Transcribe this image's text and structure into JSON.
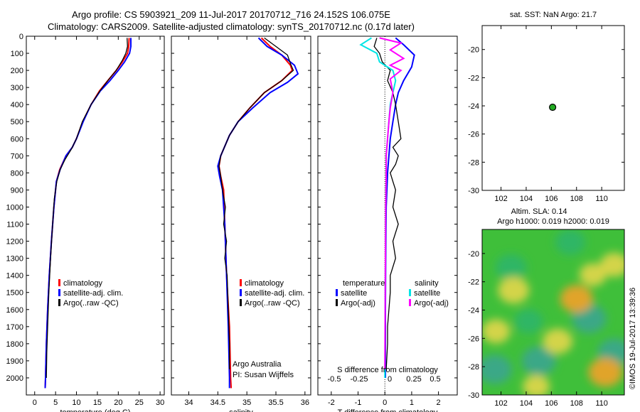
{
  "header": {
    "line1": "Argo profile: CS 5903921_209 11-Jul-2017 20170712_716 24.152S 106.075E",
    "line2": "Climatology: CARS2009. Satellite-adjusted climatology: synTS_20170712.nc (0.17d later)"
  },
  "credit": "Argo Australia",
  "pi": "PI: Susan Wijffels",
  "stamp": "©IMOS 19-Jul-2017 13:39:36",
  "colors": {
    "climatology": "#ff0000",
    "satellite": "#0000ff",
    "argo": "#000000",
    "sat_s": "#00e5e5",
    "argo_s": "#ff00ff"
  },
  "chart_data": [
    {
      "id": "temperature",
      "type": "line",
      "xlabel": "temperature (deg C)",
      "xlim": [
        -2,
        31
      ],
      "ylim": [
        2100,
        0
      ],
      "xticks": [
        0,
        5,
        10,
        15,
        20,
        25,
        30
      ],
      "yticks": [
        0,
        100,
        200,
        300,
        400,
        500,
        600,
        700,
        800,
        900,
        1000,
        1100,
        1200,
        1300,
        1400,
        1500,
        1600,
        1700,
        1800,
        1900,
        2000
      ],
      "legend": [
        "climatology",
        "satellite-adj. clim.",
        "Argo(..raw -QC)"
      ],
      "series": [
        {
          "name": "climatology",
          "color": "#ff0000",
          "points": [
            [
              22.6,
              10
            ],
            [
              22.5,
              60
            ],
            [
              22.2,
              100
            ],
            [
              21,
              150
            ],
            [
              19.5,
              200
            ],
            [
              17.5,
              260
            ],
            [
              15.5,
              320
            ],
            [
              13.5,
              400
            ],
            [
              11.5,
              500
            ],
            [
              10,
              600
            ],
            [
              9,
              650
            ],
            [
              7.5,
              700
            ],
            [
              6,
              780
            ],
            [
              5.2,
              850
            ],
            [
              4.6,
              1000
            ],
            [
              4,
              1200
            ],
            [
              3.5,
              1400
            ],
            [
              3.1,
              1600
            ],
            [
              2.8,
              1800
            ],
            [
              2.6,
              2000
            ],
            [
              2.5,
              2060
            ]
          ]
        },
        {
          "name": "satellite-adj. clim.",
          "color": "#0000ff",
          "points": [
            [
              23,
              10
            ],
            [
              23,
              60
            ],
            [
              22.7,
              100
            ],
            [
              21.5,
              150
            ],
            [
              20,
              200
            ],
            [
              18,
              260
            ],
            [
              15.7,
              320
            ],
            [
              13.5,
              400
            ],
            [
              11.6,
              500
            ],
            [
              10,
              600
            ],
            [
              9,
              650
            ],
            [
              7.5,
              700
            ],
            [
              6.1,
              780
            ],
            [
              5.2,
              850
            ],
            [
              4.6,
              1000
            ],
            [
              4,
              1200
            ],
            [
              3.5,
              1400
            ],
            [
              3.1,
              1600
            ],
            [
              2.8,
              1800
            ],
            [
              2.6,
              2000
            ],
            [
              2.5,
              2060
            ]
          ]
        },
        {
          "name": "Argo(..raw -QC)",
          "color": "#000000",
          "points": [
            [
              22.1,
              10
            ],
            [
              22.2,
              60
            ],
            [
              21.8,
              100
            ],
            [
              21,
              140
            ],
            [
              19.5,
              200
            ],
            [
              17.5,
              260
            ],
            [
              15.6,
              320
            ],
            [
              13.5,
              400
            ],
            [
              11.4,
              500
            ],
            [
              10,
              600
            ],
            [
              8.8,
              660
            ],
            [
              7.3,
              720
            ],
            [
              6.1,
              780
            ],
            [
              5.3,
              850
            ],
            [
              4.7,
              950
            ],
            [
              4.3,
              1100
            ],
            [
              3.8,
              1300
            ],
            [
              3.4,
              1500
            ],
            [
              3.1,
              1700
            ],
            [
              2.9,
              1850
            ],
            [
              2.8,
              2000
            ]
          ]
        }
      ]
    },
    {
      "id": "salinity",
      "type": "line",
      "xlabel": "salinity",
      "xlim": [
        33.7,
        36.1
      ],
      "ylim": [
        2100,
        0
      ],
      "xticks": [
        34,
        34.5,
        35,
        35.5,
        36
      ],
      "legend": [
        "climatology",
        "satellite-adj. clim.",
        "Argo(..raw -QC)"
      ],
      "series": [
        {
          "name": "climatology",
          "color": "#ff0000",
          "points": [
            [
              35.25,
              10
            ],
            [
              35.4,
              60
            ],
            [
              35.6,
              110
            ],
            [
              35.75,
              170
            ],
            [
              35.78,
              200
            ],
            [
              35.6,
              260
            ],
            [
              35.3,
              330
            ],
            [
              35.05,
              420
            ],
            [
              34.85,
              500
            ],
            [
              34.7,
              580
            ],
            [
              34.55,
              700
            ],
            [
              34.52,
              760
            ],
            [
              34.55,
              820
            ],
            [
              34.6,
              900
            ],
            [
              34.62,
              1100
            ],
            [
              34.65,
              1400
            ],
            [
              34.7,
              1700
            ],
            [
              34.72,
              2000
            ],
            [
              34.73,
              2060
            ]
          ]
        },
        {
          "name": "satellite-adj. clim.",
          "color": "#0000ff",
          "points": [
            [
              35.2,
              10
            ],
            [
              35.35,
              60
            ],
            [
              35.6,
              110
            ],
            [
              35.82,
              170
            ],
            [
              35.88,
              220
            ],
            [
              35.7,
              270
            ],
            [
              35.4,
              330
            ],
            [
              35.1,
              420
            ],
            [
              34.85,
              500
            ],
            [
              34.7,
              580
            ],
            [
              34.55,
              700
            ],
            [
              34.5,
              760
            ],
            [
              34.53,
              820
            ],
            [
              34.58,
              900
            ],
            [
              34.62,
              1100
            ],
            [
              34.65,
              1400
            ],
            [
              34.68,
              1700
            ],
            [
              34.7,
              2000
            ],
            [
              34.7,
              2060
            ]
          ]
        },
        {
          "name": "Argo(..raw -QC)",
          "color": "#000000",
          "points": [
            [
              35.3,
              10
            ],
            [
              35.5,
              60
            ],
            [
              35.7,
              110
            ],
            [
              35.75,
              160
            ],
            [
              35.8,
              200
            ],
            [
              35.6,
              260
            ],
            [
              35.3,
              330
            ],
            [
              35.05,
              420
            ],
            [
              34.85,
              500
            ],
            [
              34.7,
              580
            ],
            [
              34.55,
              700
            ],
            [
              34.52,
              760
            ],
            [
              34.55,
              820
            ],
            [
              34.58,
              900
            ],
            [
              34.63,
              1000
            ],
            [
              34.6,
              1100
            ],
            [
              34.65,
              1200
            ],
            [
              34.62,
              1300
            ],
            [
              34.66,
              1400
            ],
            [
              34.68,
              1600
            ],
            [
              34.7,
              1800
            ],
            [
              34.7,
              1950
            ]
          ]
        }
      ]
    },
    {
      "id": "difference",
      "type": "line",
      "xlabel": "T difference from climatology",
      "x2label": "S difference from climatology",
      "xlim": [
        -2.5,
        2.7
      ],
      "ylim": [
        2100,
        0
      ],
      "xticks": [
        -2,
        -1,
        0,
        1,
        2
      ],
      "x2ticks": [
        "-0.5",
        "-0.25",
        "0",
        "0.25",
        "0.5"
      ],
      "legend_left_title": "temperature",
      "legend_right_title": "salinity",
      "legend_left": [
        "satellite",
        "Argo(-adj)"
      ],
      "legend_right": [
        "satellite",
        "Argo(-adj)"
      ],
      "series": [
        {
          "name": "T satellite",
          "color": "#0000ff",
          "points": [
            [
              0.4,
              10
            ],
            [
              0.7,
              50
            ],
            [
              1.1,
              110
            ],
            [
              1,
              180
            ],
            [
              0.7,
              260
            ],
            [
              0.5,
              330
            ],
            [
              0.4,
              400
            ],
            [
              0.3,
              500
            ],
            [
              0.2,
              600
            ],
            [
              0.15,
              700
            ],
            [
              0.1,
              800
            ],
            [
              0.05,
              1000
            ],
            [
              0.03,
              1300
            ],
            [
              0.02,
              1600
            ],
            [
              0.02,
              2000
            ]
          ]
        },
        {
          "name": "T Argo(-adj)",
          "color": "#000000",
          "points": [
            [
              -0.3,
              10
            ],
            [
              -0.4,
              60
            ],
            [
              -0.2,
              100
            ],
            [
              -0.1,
              150
            ],
            [
              0.2,
              200
            ],
            [
              0.1,
              260
            ],
            [
              0.3,
              330
            ],
            [
              0.4,
              400
            ],
            [
              0.5,
              500
            ],
            [
              0.6,
              600
            ],
            [
              0.3,
              650
            ],
            [
              0.5,
              700
            ],
            [
              0.4,
              750
            ],
            [
              0.2,
              800
            ],
            [
              0.3,
              850
            ],
            [
              0.4,
              900
            ],
            [
              0.3,
              1000
            ],
            [
              0.5,
              1100
            ],
            [
              0.3,
              1200
            ],
            [
              0.4,
              1300
            ],
            [
              0.2,
              1400
            ],
            [
              0.2,
              1500
            ],
            [
              0.15,
              1600
            ],
            [
              0.1,
              1700
            ],
            [
              0.1,
              1800
            ],
            [
              0.05,
              1950
            ]
          ]
        },
        {
          "name": "S satellite",
          "color": "#00e5e5",
          "points": [
            [
              -0.5,
              10
            ],
            [
              -0.9,
              50
            ],
            [
              -0.3,
              100
            ],
            [
              -0.2,
              150
            ],
            [
              0.3,
              200
            ],
            [
              0.4,
              260
            ],
            [
              0.3,
              330
            ],
            [
              0.2,
              400
            ],
            [
              0.15,
              500
            ],
            [
              0.1,
              600
            ],
            [
              0.05,
              700
            ],
            [
              0.05,
              800
            ],
            [
              0.03,
              1000
            ],
            [
              0.02,
              1300
            ],
            [
              0.01,
              1600
            ],
            [
              0,
              2000
            ]
          ]
        },
        {
          "name": "S Argo(-adj)",
          "color": "#ff00ff",
          "points": [
            [
              -0.2,
              10
            ],
            [
              0.6,
              40
            ],
            [
              0.2,
              80
            ],
            [
              0.7,
              130
            ],
            [
              0.2,
              170
            ],
            [
              0.6,
              200
            ],
            [
              0.2,
              250
            ],
            [
              0.3,
              330
            ],
            [
              0.2,
              420
            ],
            [
              0.15,
              500
            ],
            [
              0.1,
              600
            ],
            [
              0.05,
              700
            ],
            [
              0.05,
              800
            ],
            [
              0.03,
              1000
            ],
            [
              0.02,
              1300
            ],
            [
              0.01,
              1600
            ],
            [
              0,
              1950
            ]
          ]
        }
      ]
    },
    {
      "id": "location",
      "type": "scatter",
      "title": "sat. SST: NaN Argo: 21.7",
      "xlim": [
        100.5,
        111.8
      ],
      "ylim": [
        -30,
        -18.3
      ],
      "xticks": [
        102,
        104,
        106,
        108,
        110
      ],
      "yticks": [
        -20,
        -22,
        -24,
        -26,
        -28,
        -30
      ],
      "points": [
        [
          106.1,
          -24.1
        ]
      ]
    },
    {
      "id": "sla_map",
      "type": "heatmap",
      "title1": "Altim. SLA: 0.14",
      "title2": "Argo h1000: 0.019 h2000: 0.019",
      "xlim": [
        100.5,
        111.8
      ],
      "ylim": [
        -30,
        -18.3
      ],
      "xticks": [
        102,
        104,
        106,
        108,
        110
      ],
      "yticks": [
        -20,
        -22,
        -24,
        -26,
        -28,
        -30
      ],
      "blobs": [
        {
          "x": 101.5,
          "y": -28.2,
          "level": -1
        },
        {
          "x": 105,
          "y": -27.6,
          "level": -1
        },
        {
          "x": 109,
          "y": -24.6,
          "level": -1
        },
        {
          "x": 111,
          "y": -27,
          "level": -0.9
        },
        {
          "x": 102.8,
          "y": -21,
          "level": -0.8
        },
        {
          "x": 107.5,
          "y": -19.2,
          "level": -0.7
        },
        {
          "x": 104.2,
          "y": -24.8,
          "level": -0.6
        },
        {
          "x": 108,
          "y": -23.2,
          "level": 0.9
        },
        {
          "x": 110.3,
          "y": -28.4,
          "level": 1
        },
        {
          "x": 103,
          "y": -22.6,
          "level": 0.8
        },
        {
          "x": 106.5,
          "y": -26.2,
          "level": 0.7
        },
        {
          "x": 111,
          "y": -20.8,
          "level": 0.6
        },
        {
          "x": 101.6,
          "y": -25.5,
          "level": 0.6
        },
        {
          "x": 104.8,
          "y": -29.4,
          "level": 0.5
        },
        {
          "x": 109.3,
          "y": -21.5,
          "level": 0.5
        }
      ]
    }
  ]
}
